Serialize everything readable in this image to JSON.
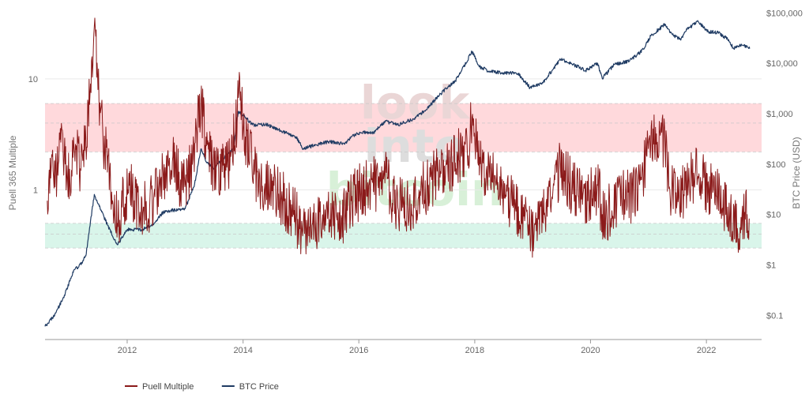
{
  "chart_data": {
    "type": "line",
    "watermark": [
      "look",
      "into",
      "bitcoin"
    ],
    "y_left": {
      "label": "Puell 365 Multiple",
      "scale": "log",
      "range": [
        0.045,
        45
      ],
      "ticks": [
        {
          "value": 1,
          "label": "1"
        },
        {
          "value": 10,
          "label": "10"
        }
      ]
    },
    "y_right": {
      "label": "BTC Price (USD)",
      "scale": "log",
      "range": [
        0.033,
        135000
      ],
      "ticks": [
        {
          "value": 100000,
          "label": "$100,000"
        },
        {
          "value": 10000,
          "label": "$10,000"
        },
        {
          "value": 1000,
          "label": "$1,000"
        },
        {
          "value": 100,
          "label": "$100"
        },
        {
          "value": 10,
          "label": "$10"
        },
        {
          "value": 1,
          "label": "$1"
        },
        {
          "value": 0.1,
          "label": "$0.1"
        }
      ]
    },
    "x_axis": {
      "type": "date",
      "range": [
        "2010-08-01",
        "2022-12-15"
      ],
      "ticks": [
        {
          "value": "2012-01-01",
          "label": "2012"
        },
        {
          "value": "2014-01-01",
          "label": "2014"
        },
        {
          "value": "2016-01-01",
          "label": "2016"
        },
        {
          "value": "2018-01-01",
          "label": "2018"
        },
        {
          "value": "2020-01-01",
          "label": "2020"
        },
        {
          "value": "2022-01-01",
          "label": "2022"
        }
      ]
    },
    "bands": [
      {
        "from": 2.2,
        "to": 6,
        "color": "#ffd9dc"
      },
      {
        "from": 0.3,
        "to": 0.5,
        "color": "#d9f5ea"
      }
    ],
    "band_lines": [
      6,
      4,
      2.2,
      0.5,
      0.4,
      0.3
    ],
    "legend": {
      "position": "bottom-left"
    },
    "series": [
      {
        "name": "Puell Multiple",
        "color": "#8b1a1a",
        "axis": "left",
        "points": [
          [
            "2010-08-15",
            0.8
          ],
          [
            "2010-09-15",
            2.0
          ],
          [
            "2010-10-15",
            1.3
          ],
          [
            "2010-11-15",
            3.5
          ],
          [
            "2010-12-15",
            1.2
          ],
          [
            "2011-01-15",
            1.5
          ],
          [
            "2011-02-15",
            2.5
          ],
          [
            "2011-03-15",
            1.5
          ],
          [
            "2011-04-15",
            3.0
          ],
          [
            "2011-05-15",
            9.0
          ],
          [
            "2011-06-08",
            30.0
          ],
          [
            "2011-07-01",
            8.0
          ],
          [
            "2011-08-01",
            3.0
          ],
          [
            "2011-09-01",
            2.0
          ],
          [
            "2011-10-01",
            0.8
          ],
          [
            "2011-11-01",
            0.5
          ],
          [
            "2011-12-01",
            0.7
          ],
          [
            "2012-01-15",
            1.1
          ],
          [
            "2012-02-15",
            0.8
          ],
          [
            "2012-04-15",
            0.7
          ],
          [
            "2012-06-15",
            0.8
          ],
          [
            "2012-08-15",
            1.4
          ],
          [
            "2012-10-15",
            2.0
          ],
          [
            "2012-12-15",
            1.0
          ],
          [
            "2013-02-15",
            1.7
          ],
          [
            "2013-04-10",
            6.5
          ],
          [
            "2013-05-15",
            2.5
          ],
          [
            "2013-07-15",
            1.4
          ],
          [
            "2013-09-15",
            1.5
          ],
          [
            "2013-10-15",
            2.0
          ],
          [
            "2013-11-15",
            3.5
          ],
          [
            "2013-12-05",
            7.5
          ],
          [
            "2014-01-15",
            3.0
          ],
          [
            "2014-03-15",
            1.5
          ],
          [
            "2014-05-15",
            1.0
          ],
          [
            "2014-07-15",
            1.1
          ],
          [
            "2014-09-15",
            0.8
          ],
          [
            "2014-11-15",
            0.6
          ],
          [
            "2015-01-15",
            0.45
          ],
          [
            "2015-03-15",
            0.5
          ],
          [
            "2015-05-15",
            0.5
          ],
          [
            "2015-07-15",
            0.6
          ],
          [
            "2015-09-15",
            0.55
          ],
          [
            "2015-11-15",
            0.8
          ],
          [
            "2016-01-15",
            1.0
          ],
          [
            "2016-03-15",
            1.1
          ],
          [
            "2016-05-15",
            1.2
          ],
          [
            "2016-07-01",
            1.3
          ],
          [
            "2016-07-15",
            0.8
          ],
          [
            "2016-09-15",
            0.75
          ],
          [
            "2016-11-15",
            0.7
          ],
          [
            "2017-01-15",
            1.0
          ],
          [
            "2017-03-15",
            1.1
          ],
          [
            "2017-05-15",
            1.4
          ],
          [
            "2017-07-15",
            1.5
          ],
          [
            "2017-09-15",
            2.0
          ],
          [
            "2017-11-15",
            2.2
          ],
          [
            "2017-12-15",
            4.5
          ],
          [
            "2018-01-15",
            2.2
          ],
          [
            "2018-03-15",
            1.5
          ],
          [
            "2018-05-15",
            1.1
          ],
          [
            "2018-07-15",
            0.9
          ],
          [
            "2018-09-15",
            0.7
          ],
          [
            "2018-11-15",
            0.6
          ],
          [
            "2018-12-15",
            0.4
          ],
          [
            "2019-01-15",
            0.5
          ],
          [
            "2019-03-15",
            0.6
          ],
          [
            "2019-05-15",
            1.1
          ],
          [
            "2019-06-25",
            1.6
          ],
          [
            "2019-08-15",
            1.2
          ],
          [
            "2019-10-15",
            0.9
          ],
          [
            "2019-12-15",
            0.8
          ],
          [
            "2020-02-15",
            1.1
          ],
          [
            "2020-03-15",
            0.6
          ],
          [
            "2020-05-15",
            0.65
          ],
          [
            "2020-07-15",
            0.85
          ],
          [
            "2020-09-15",
            0.9
          ],
          [
            "2020-11-15",
            1.3
          ],
          [
            "2021-01-15",
            2.5
          ],
          [
            "2021-02-20",
            3.2
          ],
          [
            "2021-04-15",
            2.5
          ],
          [
            "2021-05-15",
            1.0
          ],
          [
            "2021-07-15",
            0.8
          ],
          [
            "2021-09-15",
            1.2
          ],
          [
            "2021-11-15",
            1.4
          ],
          [
            "2022-01-15",
            1.0
          ],
          [
            "2022-03-15",
            0.9
          ],
          [
            "2022-05-15",
            0.7
          ],
          [
            "2022-07-15",
            0.45
          ],
          [
            "2022-09-15",
            0.6
          ],
          [
            "2022-10-01",
            0.55
          ]
        ]
      },
      {
        "name": "BTC Price",
        "color": "#1f3b63",
        "axis": "right",
        "points": [
          [
            "2010-08-01",
            0.06
          ],
          [
            "2010-10-01",
            0.1
          ],
          [
            "2010-12-01",
            0.25
          ],
          [
            "2011-02-01",
            0.8
          ],
          [
            "2011-03-01",
            0.9
          ],
          [
            "2011-04-15",
            1.5
          ],
          [
            "2011-06-08",
            25
          ],
          [
            "2011-07-15",
            13
          ],
          [
            "2011-09-01",
            6
          ],
          [
            "2011-11-01",
            2.5
          ],
          [
            "2012-01-01",
            5
          ],
          [
            "2012-04-01",
            5
          ],
          [
            "2012-06-01",
            6
          ],
          [
            "2012-08-15",
            11
          ],
          [
            "2012-10-01",
            12
          ],
          [
            "2013-01-01",
            13
          ],
          [
            "2013-03-01",
            40
          ],
          [
            "2013-04-10",
            200
          ],
          [
            "2013-05-15",
            110
          ],
          [
            "2013-07-01",
            80
          ],
          [
            "2013-09-01",
            130
          ],
          [
            "2013-11-01",
            200
          ],
          [
            "2013-12-01",
            1100
          ],
          [
            "2014-01-15",
            850
          ],
          [
            "2014-03-01",
            600
          ],
          [
            "2014-06-01",
            600
          ],
          [
            "2014-09-01",
            450
          ],
          [
            "2014-12-01",
            350
          ],
          [
            "2015-01-15",
            200
          ],
          [
            "2015-04-01",
            240
          ],
          [
            "2015-07-01",
            280
          ],
          [
            "2015-10-01",
            250
          ],
          [
            "2015-11-15",
            350
          ],
          [
            "2016-01-15",
            420
          ],
          [
            "2016-04-01",
            420
          ],
          [
            "2016-06-15",
            700
          ],
          [
            "2016-09-01",
            600
          ],
          [
            "2016-12-15",
            800
          ],
          [
            "2017-03-01",
            1200
          ],
          [
            "2017-06-01",
            2500
          ],
          [
            "2017-09-01",
            4500
          ],
          [
            "2017-12-15",
            17000
          ],
          [
            "2018-02-01",
            8500
          ],
          [
            "2018-04-01",
            7000
          ],
          [
            "2018-07-01",
            6500
          ],
          [
            "2018-10-01",
            6300
          ],
          [
            "2018-12-15",
            3300
          ],
          [
            "2019-03-01",
            3900
          ],
          [
            "2019-06-25",
            12000
          ],
          [
            "2019-09-01",
            10000
          ],
          [
            "2019-12-01",
            7200
          ],
          [
            "2020-02-15",
            10000
          ],
          [
            "2020-03-15",
            5000
          ],
          [
            "2020-06-01",
            9500
          ],
          [
            "2020-09-01",
            11000
          ],
          [
            "2020-12-01",
            19000
          ],
          [
            "2021-01-15",
            35000
          ],
          [
            "2021-04-15",
            60000
          ],
          [
            "2021-06-01",
            37000
          ],
          [
            "2021-07-20",
            30000
          ],
          [
            "2021-09-01",
            47000
          ],
          [
            "2021-11-10",
            67000
          ],
          [
            "2022-01-15",
            42000
          ],
          [
            "2022-03-15",
            41000
          ],
          [
            "2022-05-15",
            30000
          ],
          [
            "2022-06-20",
            20000
          ],
          [
            "2022-08-15",
            23000
          ],
          [
            "2022-10-01",
            19500
          ]
        ]
      }
    ]
  }
}
